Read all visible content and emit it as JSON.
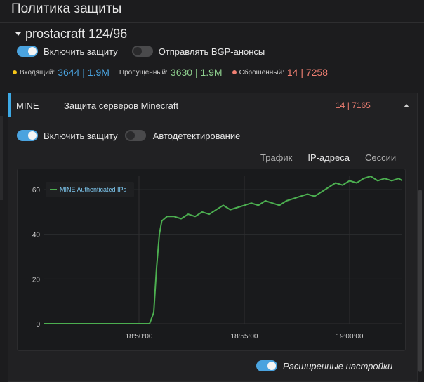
{
  "page": {
    "title": "Политика защиты"
  },
  "group": {
    "name": "prostacraft 124/96",
    "enable_label": "Включить защиту",
    "enable_on": true,
    "bgp_label": "Отправлять BGP-анонсы",
    "bgp_on": false
  },
  "stats": {
    "incoming_label": "Входящий:",
    "incoming_value": "3644 | 1.9M",
    "passed_label": "Пропущенный:",
    "passed_value": "3630 | 1.9M",
    "dropped_label": "Сброшенный:",
    "dropped_count": "14",
    "dropped_sep": " | ",
    "dropped_total": "7258",
    "colors": {
      "incoming": "#f5c518",
      "passed_dot": "#cfcfcf",
      "dropped": "#f07f72",
      "incoming_value": "#4aa3df",
      "passed_value": "#8fd18f"
    }
  },
  "profile": {
    "code": "MINE",
    "name": "Защита серверов Minecraft",
    "count": "14",
    "sep": " | ",
    "total": "7165",
    "enable_label": "Включить защиту",
    "enable_on": true,
    "autodetect_label": "Автодетектирование",
    "autodetect_on": false
  },
  "tabs": [
    {
      "label": "Трафик",
      "active": false
    },
    {
      "label": "IP-адреса",
      "active": true
    },
    {
      "label": "Сессии",
      "active": false
    }
  ],
  "chart_data": {
    "type": "line",
    "title": "",
    "xlabel": "",
    "ylabel": "",
    "ylim": [
      0,
      66
    ],
    "yticks": [
      0,
      20,
      40,
      60
    ],
    "xticks": [
      "18:50:00",
      "18:55:00",
      "19:00:00"
    ],
    "grid": true,
    "legend_position": "top-left",
    "series": [
      {
        "name": "MINE Authenticated IPs",
        "color": "#4caf50",
        "points": [
          [
            "18:45:30",
            0
          ],
          [
            "18:46:30",
            0
          ],
          [
            "18:47:30",
            0
          ],
          [
            "18:48:30",
            0
          ],
          [
            "18:49:00",
            0
          ],
          [
            "18:49:30",
            0
          ],
          [
            "18:50:30",
            0
          ],
          [
            "18:50:42",
            5
          ],
          [
            "18:50:50",
            25
          ],
          [
            "18:50:58",
            40
          ],
          [
            "18:51:05",
            46
          ],
          [
            "18:51:20",
            48
          ],
          [
            "18:51:40",
            48
          ],
          [
            "18:52:00",
            47
          ],
          [
            "18:52:20",
            49
          ],
          [
            "18:52:40",
            48
          ],
          [
            "18:53:00",
            50
          ],
          [
            "18:53:20",
            49
          ],
          [
            "18:53:40",
            51
          ],
          [
            "18:54:00",
            53
          ],
          [
            "18:54:20",
            51
          ],
          [
            "18:54:40",
            52
          ],
          [
            "18:55:00",
            53
          ],
          [
            "18:55:20",
            54
          ],
          [
            "18:55:40",
            53
          ],
          [
            "18:56:00",
            55
          ],
          [
            "18:56:20",
            54
          ],
          [
            "18:56:40",
            53
          ],
          [
            "18:57:00",
            55
          ],
          [
            "18:57:20",
            56
          ],
          [
            "18:57:40",
            57
          ],
          [
            "18:58:00",
            58
          ],
          [
            "18:58:20",
            57
          ],
          [
            "18:58:40",
            59
          ],
          [
            "18:59:00",
            61
          ],
          [
            "18:59:20",
            63
          ],
          [
            "18:59:40",
            62
          ],
          [
            "19:00:00",
            64
          ],
          [
            "19:00:20",
            63
          ],
          [
            "19:00:40",
            65
          ],
          [
            "19:01:00",
            66
          ],
          [
            "19:01:20",
            64
          ],
          [
            "19:01:40",
            65
          ],
          [
            "19:02:00",
            64
          ],
          [
            "19:02:20",
            65
          ],
          [
            "19:02:30",
            64
          ]
        ]
      }
    ]
  },
  "advanced": {
    "label": "Расширенные настройки",
    "on": true
  }
}
